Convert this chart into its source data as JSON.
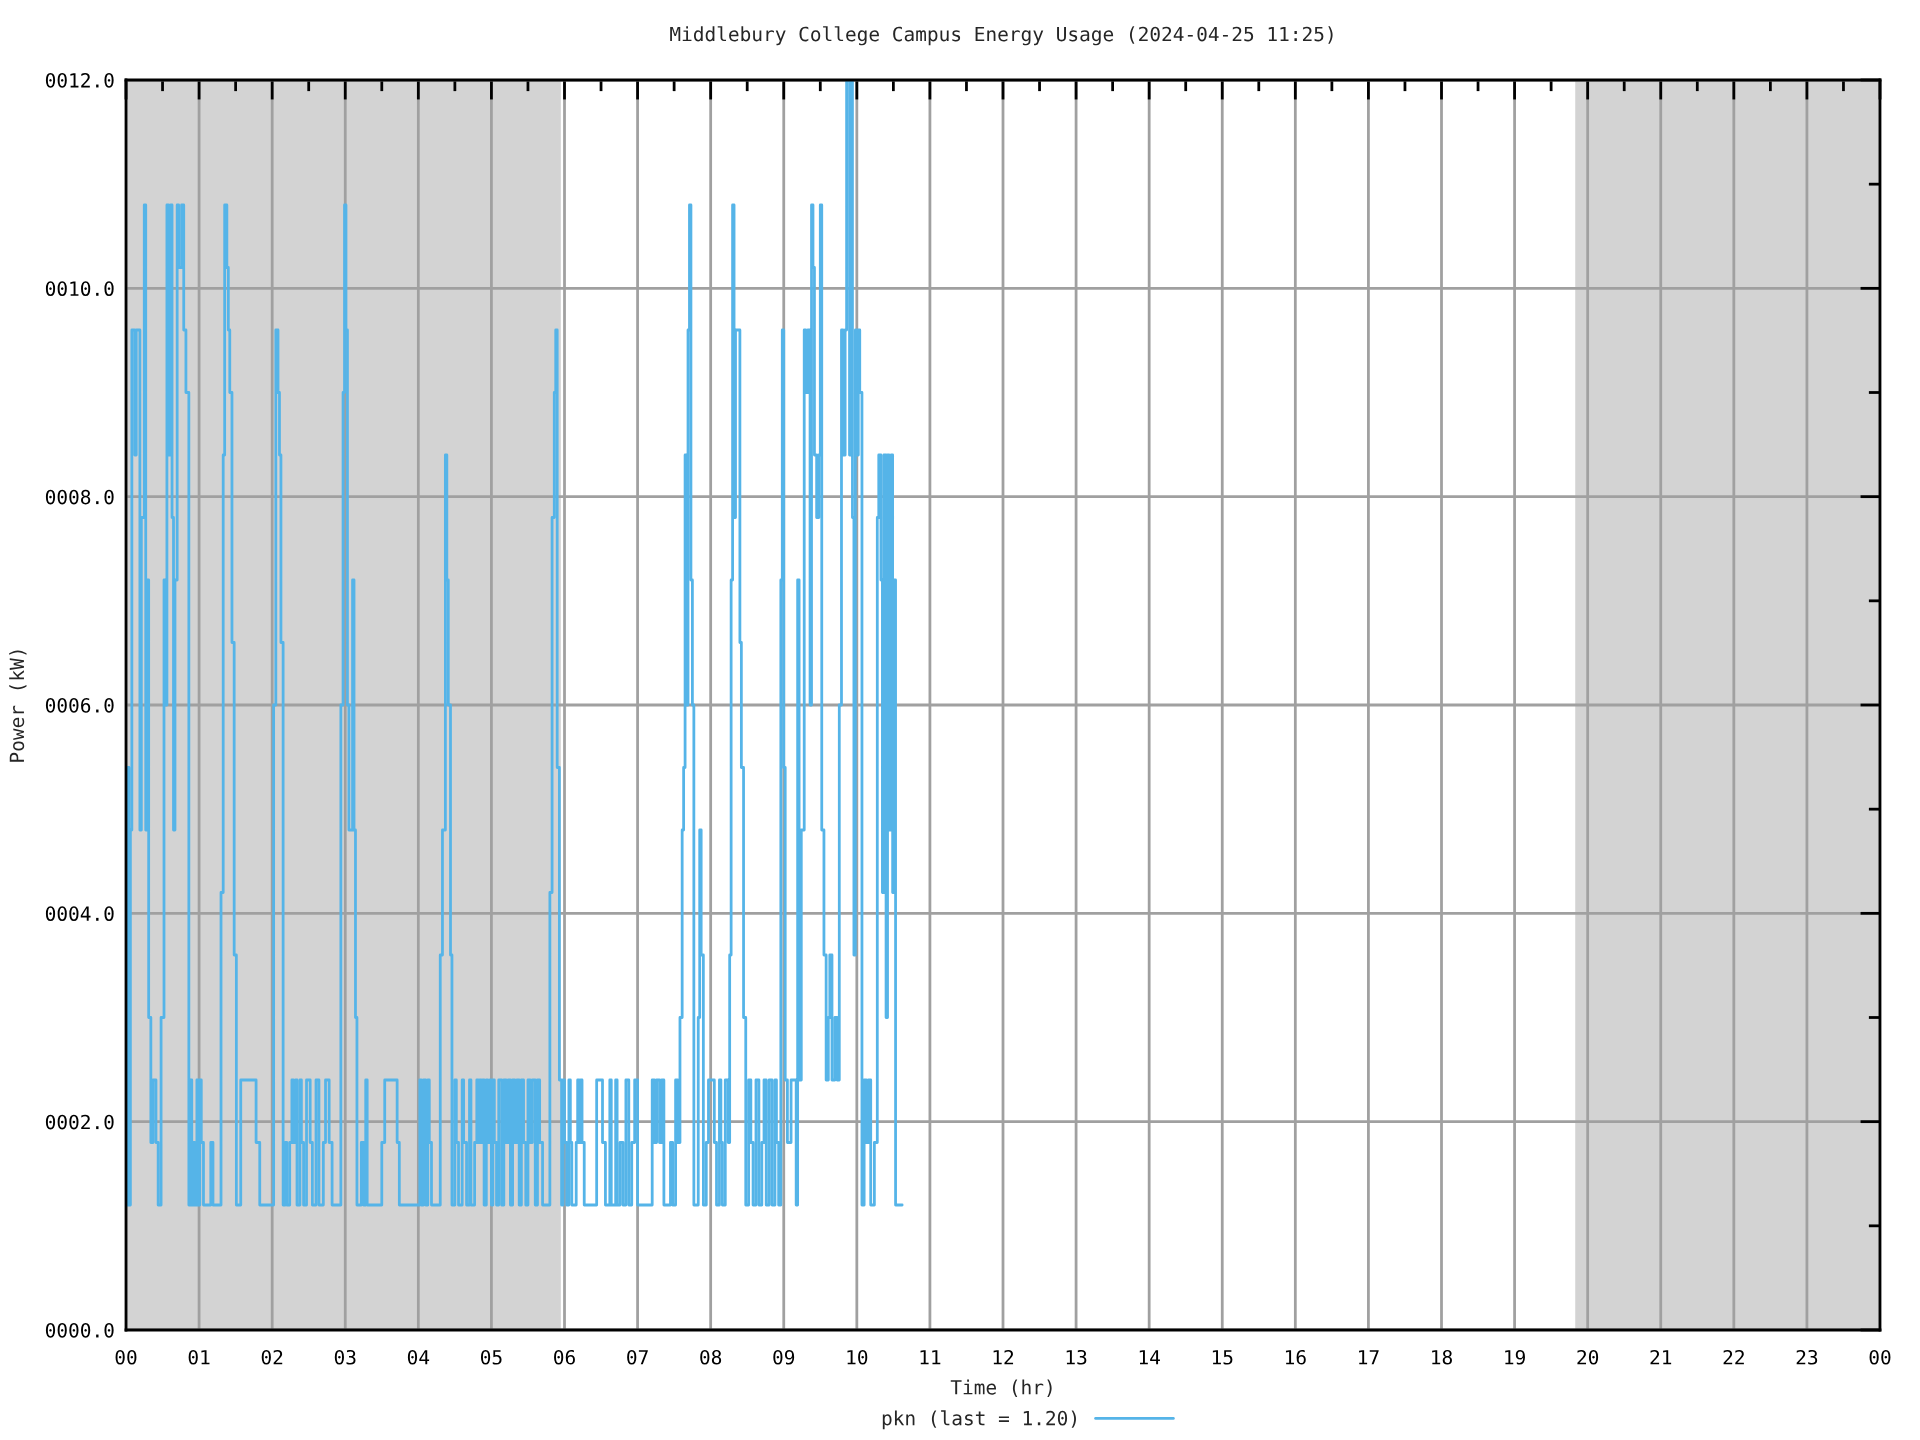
{
  "chart_data": {
    "type": "step",
    "title": "Middlebury College Campus Energy Usage (2024-04-25 11:25)",
    "xlabel": "Time (hr)",
    "ylabel": "Power (kW)",
    "series": [
      {
        "name": "pkn (last = 1.20)",
        "color": "#55b4e8",
        "x": [
          0,
          0.02,
          0.04,
          0.06,
          0.08,
          0.12,
          0.14,
          0.19,
          0.21,
          0.25,
          0.27,
          0.29,
          0.31,
          0.34,
          0.37,
          0.41,
          0.44,
          0.48,
          0.52,
          0.54,
          0.56,
          0.58,
          0.61,
          0.63,
          0.65,
          0.67,
          0.7,
          0.72,
          0.76,
          0.79,
          0.82,
          0.86,
          0.88,
          0.9,
          0.92,
          0.94,
          0.97,
          0.99,
          1.01,
          1.03,
          1.06,
          1.16,
          1.19,
          1.3,
          1.33,
          1.35,
          1.38,
          1.4,
          1.42,
          1.45,
          1.48,
          1.51,
          1.57,
          1.78,
          1.83,
          2.02,
          2.05,
          2.08,
          2.1,
          2.12,
          2.15,
          2.18,
          2.2,
          2.24,
          2.27,
          2.29,
          2.32,
          2.34,
          2.38,
          2.4,
          2.43,
          2.47,
          2.52,
          2.55,
          2.6,
          2.64,
          2.7,
          2.73,
          2.78,
          2.82,
          2.94,
          2.97,
          2.99,
          3.01,
          3.03,
          3.05,
          3.1,
          3.12,
          3.14,
          3.16,
          3.22,
          3.25,
          3.28,
          3.3,
          3.5,
          3.54,
          3.71,
          3.74,
          4.02,
          4.04,
          4.07,
          4.1,
          4.13,
          4.15,
          4.18,
          4.3,
          4.33,
          4.37,
          4.39,
          4.41,
          4.44,
          4.46,
          4.5,
          4.52,
          4.55,
          4.6,
          4.62,
          4.66,
          4.7,
          4.72,
          4.77,
          4.8,
          4.82,
          4.84,
          4.86,
          4.88,
          4.9,
          4.93,
          4.95,
          4.98,
          5,
          5.02,
          5.04,
          5.07,
          5.1,
          5.14,
          5.17,
          5.2,
          5.23,
          5.26,
          5.29,
          5.32,
          5.35,
          5.38,
          5.41,
          5.44,
          5.47,
          5.5,
          5.53,
          5.56,
          5.6,
          5.63,
          5.66,
          5.7,
          5.8,
          5.83,
          5.86,
          5.88,
          5.9,
          5.93,
          5.96,
          5.98,
          6,
          6.03,
          6.06,
          6.08,
          6.1,
          6.16,
          6.18,
          6.2,
          6.22,
          6.24,
          6.27,
          6.44,
          6.52,
          6.56,
          6.62,
          6.64,
          6.7,
          6.72,
          6.76,
          6.8,
          6.84,
          6.88,
          6.92,
          6.96,
          7,
          7.2,
          7.23,
          7.26,
          7.3,
          7.33,
          7.36,
          7.45,
          7.48,
          7.52,
          7.55,
          7.58,
          7.61,
          7.63,
          7.65,
          7.67,
          7.69,
          7.71,
          7.73,
          7.75,
          7.77,
          7.83,
          7.85,
          7.87,
          7.9,
          7.94,
          7.97,
          8.05,
          8.08,
          8.12,
          8.14,
          8.16,
          8.2,
          8.24,
          8.26,
          8.28,
          8.3,
          8.32,
          8.34,
          8.4,
          8.42,
          8.45,
          8.48,
          8.52,
          8.55,
          8.58,
          8.62,
          8.66,
          8.7,
          8.73,
          8.76,
          8.8,
          8.84,
          8.88,
          8.9,
          8.93,
          8.96,
          8.98,
          9,
          9.02,
          9.05,
          9.1,
          9.17,
          9.19,
          9.21,
          9.24,
          9.28,
          9.3,
          9.33,
          9.36,
          9.38,
          9.4,
          9.42,
          9.45,
          9.48,
          9.5,
          9.52,
          9.55,
          9.58,
          9.61,
          9.63,
          9.66,
          9.7,
          9.73,
          9.76,
          9.79,
          9.81,
          9.84,
          9.86,
          9.9,
          9.92,
          9.94,
          9.96,
          9.98,
          10,
          10.02,
          10.04,
          10.07,
          10.1,
          10.13,
          10.16,
          10.19,
          10.24,
          10.28,
          10.3,
          10.33,
          10.35,
          10.37,
          10.4,
          10.42,
          10.44,
          10.47,
          10.49,
          10.51,
          10.53,
          10.62
        ],
        "values": [
          1.2,
          5.4,
          1.2,
          4.8,
          9.6,
          8.4,
          9.6,
          4.8,
          7.8,
          10.8,
          4.8,
          7.2,
          3.0,
          1.8,
          2.4,
          1.8,
          1.2,
          3.0,
          7.2,
          6.0,
          10.8,
          8.4,
          10.8,
          7.8,
          4.8,
          7.2,
          10.8,
          10.2,
          10.8,
          9.6,
          9.0,
          1.2,
          2.4,
          1.2,
          1.8,
          1.2,
          2.4,
          1.2,
          2.4,
          1.8,
          1.2,
          1.8,
          1.2,
          4.2,
          8.4,
          10.8,
          10.2,
          9.6,
          9.0,
          6.6,
          3.6,
          1.2,
          2.4,
          1.8,
          1.2,
          6.0,
          9.6,
          9.0,
          8.4,
          6.6,
          1.2,
          1.8,
          1.2,
          1.8,
          2.4,
          1.8,
          2.4,
          1.2,
          2.4,
          1.8,
          1.2,
          2.4,
          1.8,
          1.2,
          2.4,
          1.2,
          1.8,
          2.4,
          1.8,
          1.2,
          6.0,
          9.0,
          10.8,
          9.6,
          6.0,
          4.8,
          7.2,
          4.8,
          3.0,
          1.2,
          1.8,
          1.2,
          2.4,
          1.2,
          1.8,
          2.4,
          1.8,
          1.2,
          2.4,
          1.2,
          2.4,
          1.2,
          2.4,
          1.8,
          1.2,
          3.6,
          4.8,
          8.4,
          7.2,
          6.0,
          3.6,
          1.2,
          2.4,
          1.8,
          1.2,
          2.4,
          1.8,
          1.2,
          2.4,
          1.2,
          1.8,
          2.4,
          1.8,
          2.4,
          1.8,
          2.4,
          1.2,
          2.4,
          1.8,
          2.4,
          1.2,
          2.4,
          1.8,
          1.2,
          2.4,
          1.2,
          2.4,
          1.8,
          2.4,
          1.2,
          2.4,
          1.8,
          2.4,
          1.2,
          2.4,
          1.8,
          1.2,
          2.4,
          1.8,
          2.4,
          1.2,
          2.4,
          1.8,
          1.2,
          4.2,
          7.8,
          9.0,
          9.6,
          5.4,
          2.4,
          1.2,
          2.4,
          1.8,
          1.2,
          2.4,
          1.8,
          1.2,
          1.8,
          2.4,
          1.8,
          2.4,
          1.8,
          1.2,
          2.4,
          1.8,
          1.2,
          2.4,
          1.2,
          2.4,
          1.2,
          1.8,
          1.2,
          2.4,
          1.2,
          1.8,
          2.4,
          1.2,
          2.4,
          1.8,
          2.4,
          1.8,
          2.4,
          1.2,
          1.8,
          1.2,
          2.4,
          1.8,
          3.0,
          4.8,
          5.4,
          8.4,
          6.0,
          9.6,
          10.8,
          7.2,
          6.0,
          1.2,
          3.0,
          4.8,
          3.6,
          1.2,
          1.8,
          2.4,
          1.8,
          1.2,
          2.4,
          1.8,
          1.2,
          2.4,
          1.8,
          3.6,
          7.2,
          10.8,
          7.8,
          9.6,
          6.6,
          5.4,
          3.0,
          1.2,
          2.4,
          1.8,
          1.2,
          2.4,
          1.2,
          1.8,
          2.4,
          1.2,
          2.4,
          1.2,
          2.4,
          1.8,
          1.2,
          7.2,
          9.6,
          5.4,
          2.4,
          1.8,
          2.4,
          1.2,
          7.2,
          2.4,
          4.8,
          9.6,
          9.0,
          9.6,
          6.0,
          10.8,
          10.2,
          8.4,
          7.8,
          8.4,
          10.8,
          4.8,
          3.6,
          2.4,
          3.0,
          3.6,
          2.4,
          3.0,
          2.4,
          6.0,
          9.6,
          8.4,
          9.6,
          12.0,
          8.4,
          12.0,
          7.8,
          3.6,
          9.6,
          8.4,
          9.6,
          9.0,
          1.2,
          2.4,
          1.8,
          2.4,
          1.2,
          1.8,
          7.8,
          8.4,
          7.2,
          4.2,
          8.4,
          3.0,
          8.4,
          4.8,
          8.4,
          4.2,
          7.2,
          1.2,
          1.2
        ]
      }
    ],
    "xlim": [
      0,
      24
    ],
    "ylim": [
      0,
      12
    ],
    "xticks": [
      {
        "value": 0,
        "label": "00"
      },
      {
        "value": 0.5,
        "label": null
      },
      {
        "value": 1,
        "label": "01"
      },
      {
        "value": 1.5,
        "label": null
      },
      {
        "value": 2,
        "label": "02"
      },
      {
        "value": 2.5,
        "label": null
      },
      {
        "value": 3,
        "label": "03"
      },
      {
        "value": 3.5,
        "label": null
      },
      {
        "value": 4,
        "label": "04"
      },
      {
        "value": 4.5,
        "label": null
      },
      {
        "value": 5,
        "label": "05"
      },
      {
        "value": 5.5,
        "label": null
      },
      {
        "value": 6,
        "label": "06"
      },
      {
        "value": 6.5,
        "label": null
      },
      {
        "value": 7,
        "label": "07"
      },
      {
        "value": 7.5,
        "label": null
      },
      {
        "value": 8,
        "label": "08"
      },
      {
        "value": 8.5,
        "label": null
      },
      {
        "value": 9,
        "label": "09"
      },
      {
        "value": 9.5,
        "label": null
      },
      {
        "value": 10,
        "label": "10"
      },
      {
        "value": 10.5,
        "label": null
      },
      {
        "value": 11,
        "label": "11"
      },
      {
        "value": 11.5,
        "label": null
      },
      {
        "value": 12,
        "label": "12"
      },
      {
        "value": 12.5,
        "label": null
      },
      {
        "value": 13,
        "label": "13"
      },
      {
        "value": 13.5,
        "label": null
      },
      {
        "value": 14,
        "label": "14"
      },
      {
        "value": 14.5,
        "label": null
      },
      {
        "value": 15,
        "label": "15"
      },
      {
        "value": 15.5,
        "label": null
      },
      {
        "value": 16,
        "label": "16"
      },
      {
        "value": 16.5,
        "label": null
      },
      {
        "value": 17,
        "label": "17"
      },
      {
        "value": 17.5,
        "label": null
      },
      {
        "value": 18,
        "label": "18"
      },
      {
        "value": 18.5,
        "label": null
      },
      {
        "value": 19,
        "label": "19"
      },
      {
        "value": 19.5,
        "label": null
      },
      {
        "value": 20,
        "label": "20"
      },
      {
        "value": 20.5,
        "label": null
      },
      {
        "value": 21,
        "label": "21"
      },
      {
        "value": 21.5,
        "label": null
      },
      {
        "value": 22,
        "label": "22"
      },
      {
        "value": 22.5,
        "label": null
      },
      {
        "value": 23,
        "label": "23"
      },
      {
        "value": 23.5,
        "label": null
      },
      {
        "value": 24,
        "label": "00"
      }
    ],
    "yticks": [
      {
        "value": 0,
        "label": "0000.0"
      },
      {
        "value": 1,
        "label": null
      },
      {
        "value": 2,
        "label": "0002.0"
      },
      {
        "value": 3,
        "label": null
      },
      {
        "value": 4,
        "label": "0004.0"
      },
      {
        "value": 5,
        "label": null
      },
      {
        "value": 6,
        "label": "0006.0"
      },
      {
        "value": 7,
        "label": null
      },
      {
        "value": 8,
        "label": "0008.0"
      },
      {
        "value": 9,
        "label": null
      },
      {
        "value": 10,
        "label": "0010.0"
      },
      {
        "value": 11,
        "label": null
      },
      {
        "value": 12,
        "label": "0012.0"
      }
    ],
    "grid": true,
    "legend": "bottom",
    "bands": [
      {
        "axis": "x",
        "from": 0,
        "to": 5.95,
        "color": "#d3d3d3"
      },
      {
        "axis": "x",
        "from": 19.83,
        "to": 24,
        "color": "#d3d3d3"
      }
    ]
  }
}
